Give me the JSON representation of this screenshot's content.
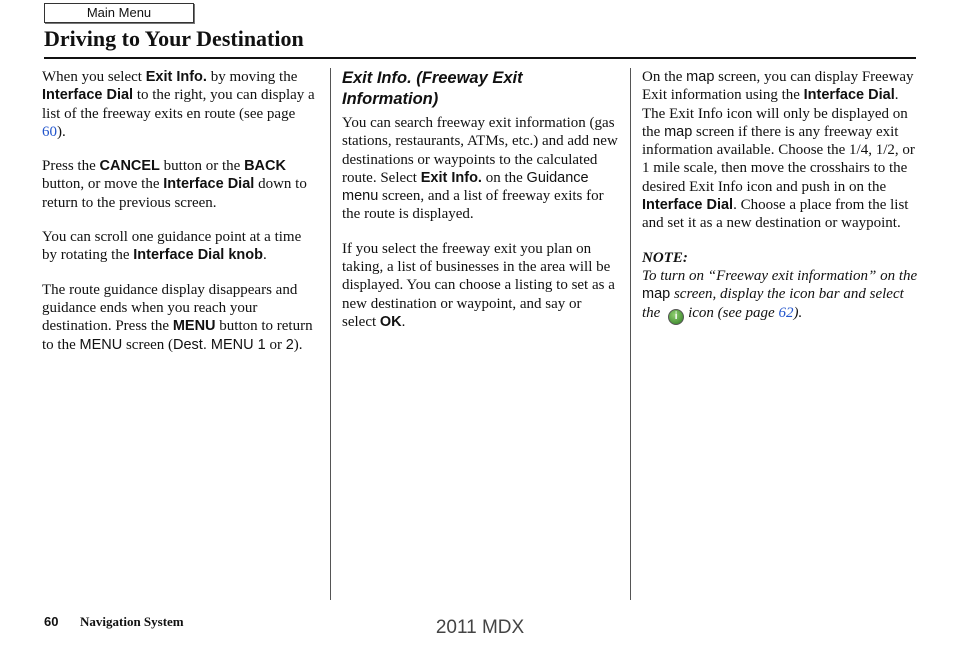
{
  "header": {
    "main_menu_label": "Main Menu",
    "title": "Driving to Your Destination"
  },
  "columns": [
    {
      "heading": "",
      "paragraphs": [
        [
          [
            "r",
            "When you select "
          ],
          [
            "b",
            "Exit Info."
          ],
          [
            "r",
            " by moving the "
          ],
          [
            "b",
            "Interface Dial"
          ],
          [
            "r",
            " to the right, you can display a list of the freeway exits en route (see page "
          ],
          [
            "l",
            "60"
          ],
          [
            "r",
            ")."
          ]
        ],
        [
          [
            "r",
            "Press the "
          ],
          [
            "b",
            "CANCEL"
          ],
          [
            "r",
            " button or the "
          ],
          [
            "b",
            "BACK"
          ],
          [
            "r",
            " button, or move the "
          ],
          [
            "b",
            "Interface Dial"
          ],
          [
            "r",
            " down to return to the previous screen."
          ]
        ],
        [
          [
            "r",
            "You can scroll one guidance point at a time by rotating the "
          ],
          [
            "b",
            "Interface Dial knob"
          ],
          [
            "r",
            "."
          ]
        ],
        [
          [
            "r",
            "The route guidance display disappears and guidance ends when you reach your destination. Press the "
          ],
          [
            "b",
            "MENU"
          ],
          [
            "r",
            " button to return to the "
          ],
          [
            "s",
            "MENU"
          ],
          [
            "r",
            " screen ("
          ],
          [
            "s",
            "Dest. MENU 1"
          ],
          [
            "r",
            " or "
          ],
          [
            "s",
            "2"
          ],
          [
            "r",
            ")."
          ]
        ]
      ]
    },
    {
      "heading": "Exit Info. (Freeway Exit Information)",
      "paragraphs": [
        [
          [
            "r",
            "You can search freeway exit information (gas stations, restaurants, ATMs, etc.) and add new destinations or waypoints to the calculated route. Select "
          ],
          [
            "b",
            "Exit Info."
          ],
          [
            "r",
            " on the "
          ],
          [
            "s",
            "Guidance menu"
          ],
          [
            "r",
            " screen, and a list of freeway exits for the route is displayed."
          ]
        ],
        [
          [
            "r",
            "If you select the freeway exit you plan on taking, a list of businesses in the area will be displayed. You can choose a listing to set as a new destination or waypoint, and say or select "
          ],
          [
            "b",
            "OK"
          ],
          [
            "r",
            "."
          ]
        ]
      ]
    },
    {
      "heading": "",
      "paragraphs": [
        [
          [
            "r",
            "On the "
          ],
          [
            "s",
            "map"
          ],
          [
            "r",
            " screen, you can display Freeway Exit information using the "
          ],
          [
            "b",
            "Interface Dial"
          ],
          [
            "r",
            ". The Exit Info icon will only be displayed on the "
          ],
          [
            "s",
            "map"
          ],
          [
            "r",
            " screen if there is any freeway exit information available. Choose the 1/4, 1/2, or 1 mile scale, then move the crosshairs to the desired Exit Info icon and push in on the "
          ],
          [
            "b",
            "Interface Dial"
          ],
          [
            "r",
            ". Choose a place from the list and set it as a new destination or waypoint."
          ]
        ],
        [
          [
            "bi",
            "NOTE:"
          ],
          [
            "br",
            ""
          ],
          [
            "i",
            "To turn on “Freeway exit information” on the "
          ],
          [
            "s",
            "map"
          ],
          [
            "i",
            " screen, display the icon bar and select the "
          ],
          [
            "icon",
            "info-icon"
          ],
          [
            "i",
            "icon (see page "
          ],
          [
            "li",
            "62"
          ],
          [
            "i",
            ")."
          ]
        ]
      ]
    }
  ],
  "footer": {
    "page_number": "60",
    "section": "Navigation System",
    "watermark": "2011 MDX"
  },
  "colors": {
    "link": "#2255cc",
    "info_icon": "#3f8f2f"
  }
}
